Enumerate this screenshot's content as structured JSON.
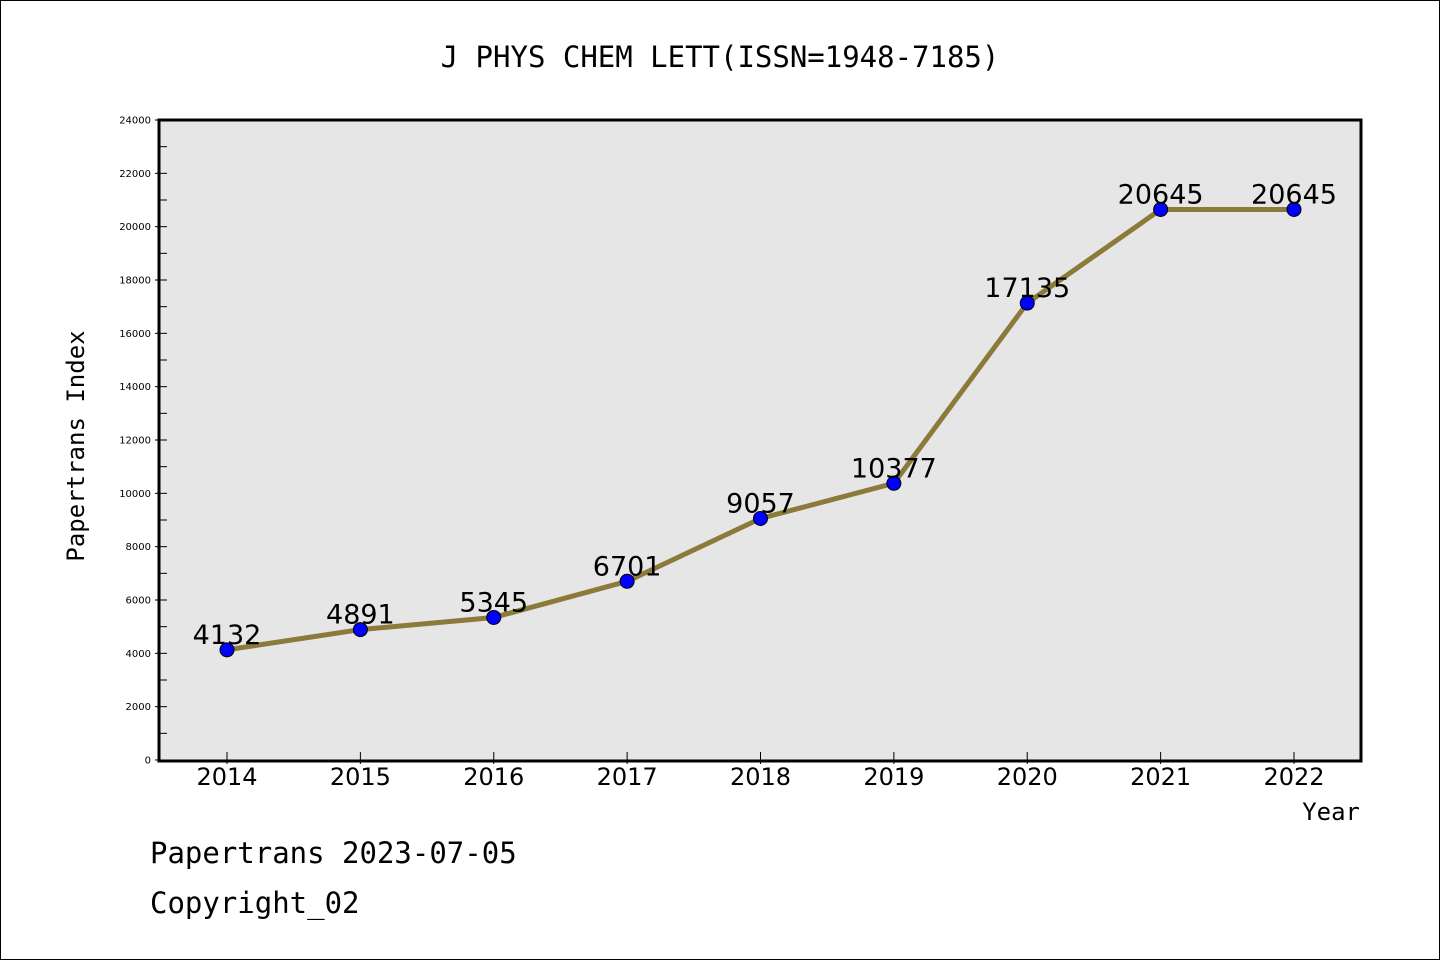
{
  "chart_data": {
    "type": "line",
    "title": "J PHYS CHEM LETT(ISSN=1948-7185)",
    "xlabel": "Year",
    "ylabel": "Papertrans Index",
    "ylim": [
      0,
      24000
    ],
    "yticks": [
      0,
      2000,
      4000,
      6000,
      8000,
      10000,
      12000,
      14000,
      16000,
      18000,
      20000,
      22000,
      24000
    ],
    "grid": false,
    "categories": [
      "2014",
      "2015",
      "2016",
      "2017",
      "2018",
      "2019",
      "2020",
      "2021",
      "2022"
    ],
    "series": [
      {
        "values": [
          4132,
          4891,
          5345,
          6701,
          9057,
          10377,
          17135,
          20645,
          20645
        ],
        "line_color": "#8c7a3a",
        "marker_color": "#0000ff"
      }
    ],
    "plot_background": "#e6e6e6"
  },
  "footer": {
    "line1": "Papertrans 2023-07-05",
    "line2": "Copyright_02"
  }
}
